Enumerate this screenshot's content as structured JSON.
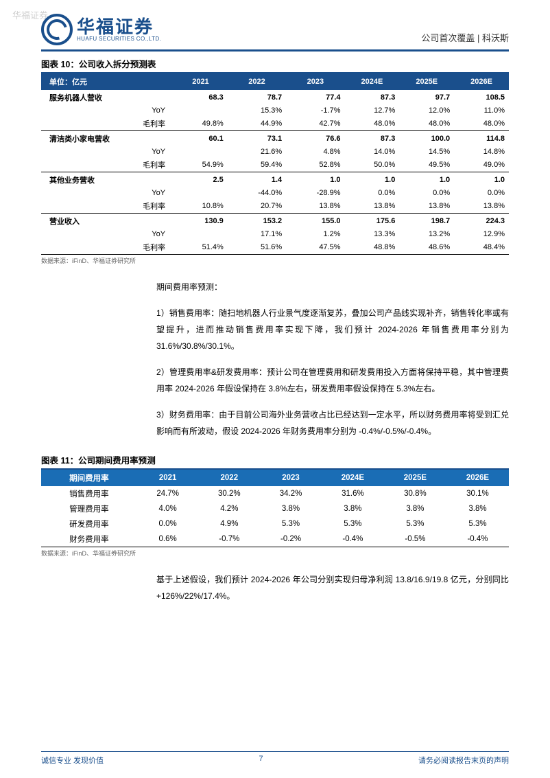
{
  "watermark": "华福证券",
  "header": {
    "logo_cn": "华福证券",
    "logo_en": "HUAFU SECURITIES CO.,LTD.",
    "right": "公司首次覆盖  |  科沃斯"
  },
  "table10": {
    "title": "图表 10：公司收入拆分预测表",
    "unit_label": "单位：亿元",
    "years": [
      "2021",
      "2022",
      "2023",
      "2024E",
      "2025E",
      "2026E"
    ],
    "groups": [
      {
        "name": "服务机器人营收",
        "values": [
          "68.3",
          "78.7",
          "77.4",
          "87.3",
          "97.7",
          "108.5"
        ],
        "yoy": [
          "",
          "15.3%",
          "-1.7%",
          "12.7%",
          "12.0%",
          "11.0%"
        ],
        "margin_label": "毛利率",
        "margin": [
          "49.8%",
          "44.9%",
          "42.7%",
          "48.0%",
          "48.0%",
          "48.0%"
        ]
      },
      {
        "name": "清洁类小家电营收",
        "values": [
          "60.1",
          "73.1",
          "76.6",
          "87.3",
          "100.0",
          "114.8"
        ],
        "yoy": [
          "",
          "21.6%",
          "4.8%",
          "14.0%",
          "14.5%",
          "14.8%"
        ],
        "margin_label": "毛利率",
        "margin": [
          "54.9%",
          "59.4%",
          "52.8%",
          "50.0%",
          "49.5%",
          "49.0%"
        ]
      },
      {
        "name": "其他业务营收",
        "values": [
          "2.5",
          "1.4",
          "1.0",
          "1.0",
          "1.0",
          "1.0"
        ],
        "yoy": [
          "",
          "-44.0%",
          "-28.9%",
          "0.0%",
          "0.0%",
          "0.0%"
        ],
        "margin_label": "毛利率",
        "margin": [
          "10.8%",
          "20.7%",
          "13.8%",
          "13.8%",
          "13.8%",
          "13.8%"
        ]
      },
      {
        "name": "营业收入",
        "values": [
          "130.9",
          "153.2",
          "155.0",
          "175.6",
          "198.7",
          "224.3"
        ],
        "yoy": [
          "",
          "17.1%",
          "1.2%",
          "13.3%",
          "13.2%",
          "12.9%"
        ],
        "margin_label": "毛利率",
        "margin": [
          "51.4%",
          "51.6%",
          "47.5%",
          "48.8%",
          "48.6%",
          "48.4%"
        ]
      }
    ],
    "yoy_label": "YoY",
    "source": "数据来源：iFinD、华福证券研究所"
  },
  "body1": {
    "intro": "期间费用率预测：",
    "p1": "1）销售费用率：随扫地机器人行业景气度逐渐复苏，叠加公司产品线实现补齐，销售转化率或有望提升，进而推动销售费用率实现下降，我们预计 2024-2026 年销售费用率分别为 31.6%/30.8%/30.1%。",
    "p2": "2）管理费用率&研发费用率：预计公司在管理费用和研发费用投入方面将保持平稳，其中管理费用率 2024-2026 年假设保持在 3.8%左右，研发费用率假设保持在 5.3%左右。",
    "p3": "3）财务费用率：由于目前公司海外业务营收占比已经达到一定水平，所以财务费用率将受到汇兑影响而有所波动，假设 2024-2026 年财务费用率分别为 -0.4%/-0.5%/-0.4%。"
  },
  "table11": {
    "title": "图表 11：公司期间费用率预测",
    "header_first": "期间费用率",
    "years": [
      "2021",
      "2022",
      "2023",
      "2024E",
      "2025E",
      "2026E"
    ],
    "rows": [
      {
        "label": "销售费用率",
        "cells": [
          "24.7%",
          "30.2%",
          "34.2%",
          "31.6%",
          "30.8%",
          "30.1%"
        ]
      },
      {
        "label": "管理费用率",
        "cells": [
          "4.0%",
          "4.2%",
          "3.8%",
          "3.8%",
          "3.8%",
          "3.8%"
        ]
      },
      {
        "label": "研发费用率",
        "cells": [
          "0.0%",
          "4.9%",
          "5.3%",
          "5.3%",
          "5.3%",
          "5.3%"
        ]
      },
      {
        "label": "财务费用率",
        "cells": [
          "0.6%",
          "-0.7%",
          "-0.2%",
          "-0.4%",
          "-0.5%",
          "-0.4%"
        ]
      }
    ],
    "source": "数据来源：iFinD、华福证券研究所"
  },
  "body2": {
    "p1": "基于上述假设，我们预计 2024-2026 年公司分别实现归母净利润 13.8/16.9/19.8 亿元，分别同比+126%/22%/17.4%。"
  },
  "footer": {
    "left": "诚信专业   发现价值",
    "page": "7",
    "right": "请务必阅读报告末页的声明"
  },
  "colors": {
    "brand_blue": "#1a4f8c",
    "table2_blue": "#1a6db5",
    "text": "#000000",
    "muted": "#666666",
    "watermark": "#d0d0d0",
    "bg": "#ffffff"
  }
}
